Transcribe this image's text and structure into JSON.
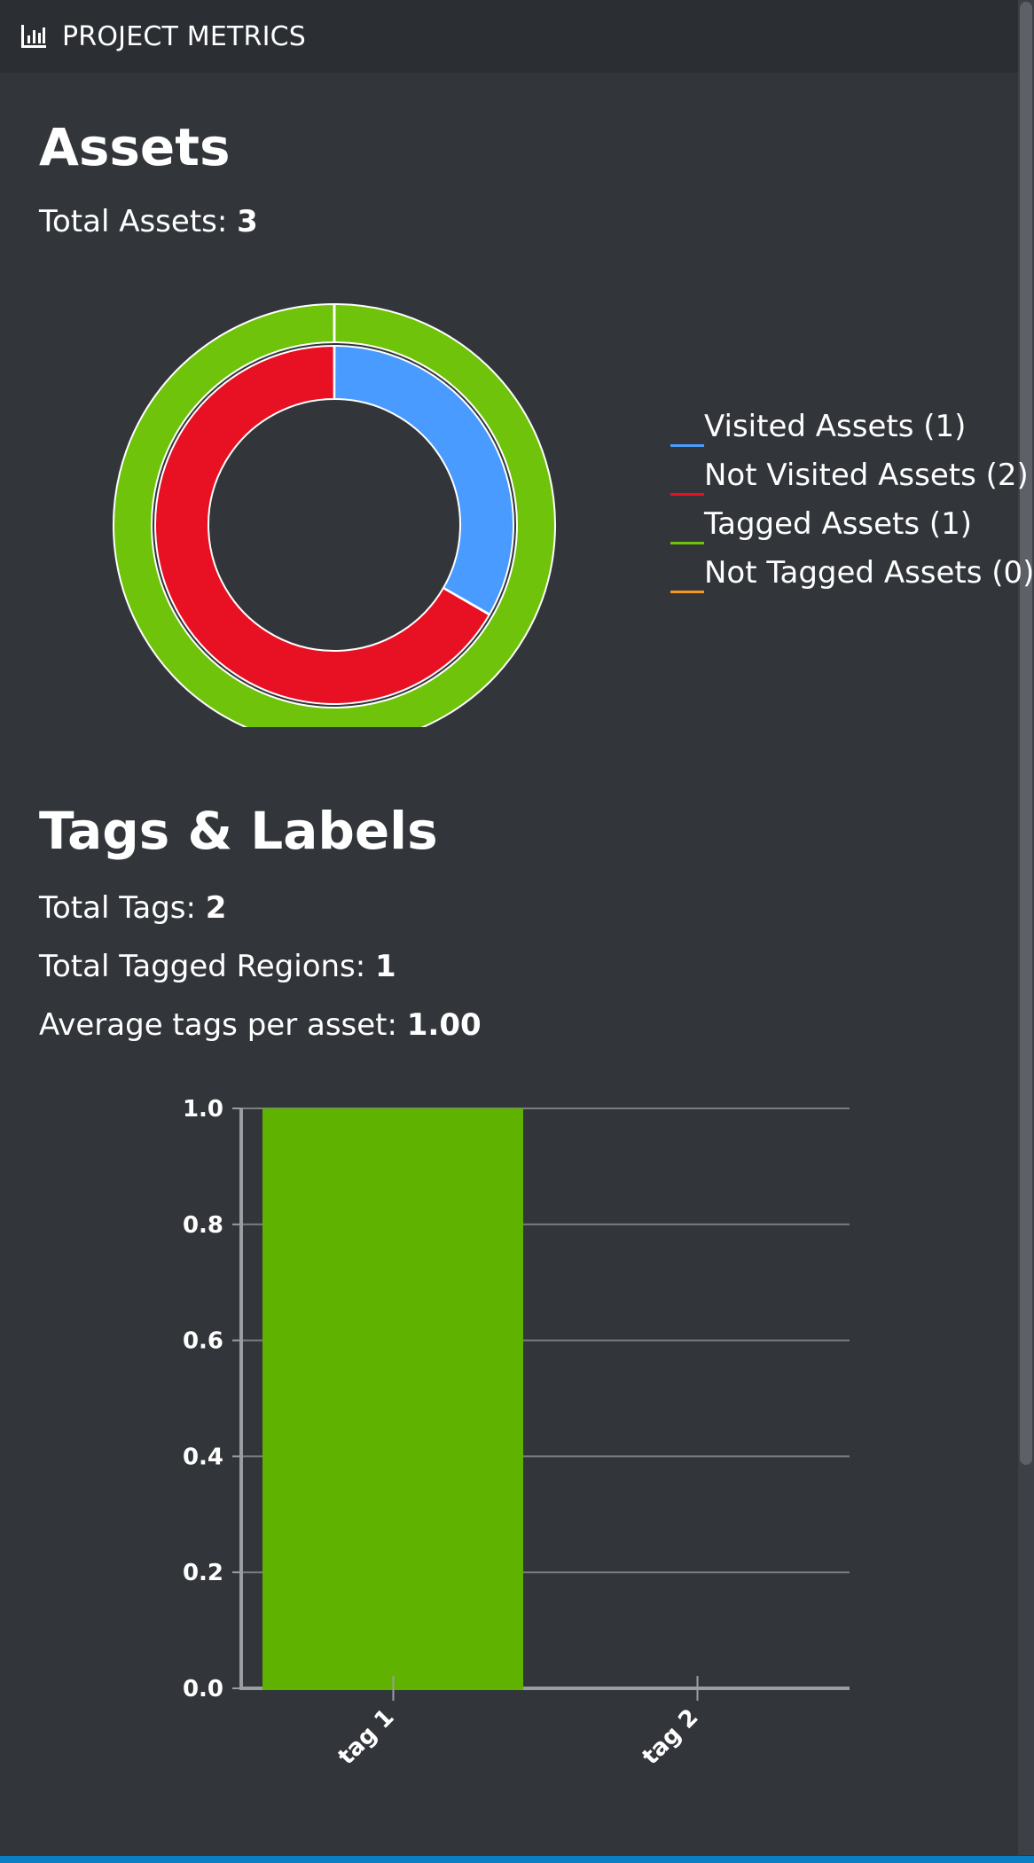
{
  "header": {
    "title": "PROJECT METRICS",
    "icon": "bar-chart-icon"
  },
  "assets": {
    "heading": "Assets",
    "total_label": "Total Assets: ",
    "total_value": "3",
    "legend": [
      {
        "label": "Visited Assets (1)",
        "color": "#4a9bff"
      },
      {
        "label": "Not Visited Assets (2)",
        "color": "#e81123"
      },
      {
        "label": "Tagged Assets (1)",
        "color": "#6fc30a"
      },
      {
        "label": "Not Tagged Assets (0)",
        "color": "#f29a21"
      }
    ]
  },
  "tags": {
    "heading": "Tags & Labels",
    "total_tags_label": "Total Tags: ",
    "total_tags_value": "2",
    "total_regions_label": "Total Tagged Regions: ",
    "total_regions_value": "1",
    "avg_label": "Average tags per asset: ",
    "avg_value": "1.00"
  },
  "chart_data": [
    {
      "type": "pie",
      "subtype": "nested-donut",
      "rings": [
        {
          "ring": "inner",
          "slices": [
            {
              "label": "Visited Assets",
              "value": 1,
              "color": "#4a9bff"
            },
            {
              "label": "Not Visited Assets",
              "value": 2,
              "color": "#e81123"
            }
          ]
        },
        {
          "ring": "outer",
          "slices": [
            {
              "label": "Tagged Assets",
              "value": 1,
              "color": "#6fc30a"
            },
            {
              "label": "Not Tagged Assets",
              "value": 0,
              "color": "#f29a21"
            }
          ]
        }
      ],
      "legend_position": "right"
    },
    {
      "type": "bar",
      "categories": [
        "tag 1",
        "tag 2"
      ],
      "values": [
        1,
        0
      ],
      "bar_color": "#5fb300",
      "ylim": [
        0,
        1
      ],
      "yticks": [
        "0.0",
        "0.2",
        "0.4",
        "0.6",
        "0.8",
        "1.0"
      ],
      "grid": true
    }
  ]
}
